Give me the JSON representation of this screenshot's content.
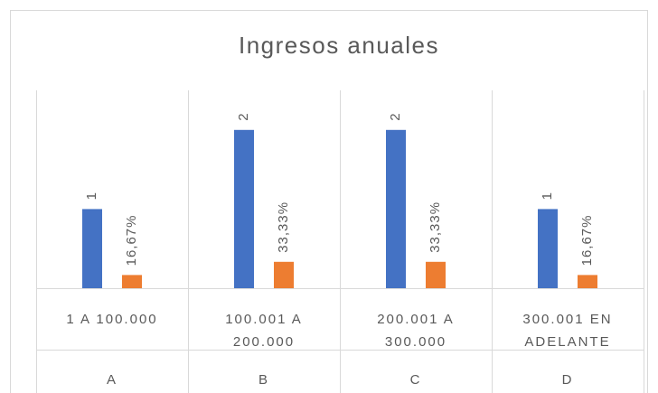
{
  "chart_data": {
    "type": "bar",
    "title": "Ingresos anuales",
    "categories": [
      "1 A 100.000",
      "100.001 A 200.000",
      "200.001 A 300.000",
      "300.001 EN ADELANTE"
    ],
    "groups": [
      "A",
      "B",
      "C",
      "D"
    ],
    "series": [
      {
        "color": "#4472c4",
        "values": [
          1,
          2,
          2,
          1
        ]
      },
      {
        "color": "#ed7d31",
        "axis": "y2",
        "values": [
          16.67,
          33.33,
          33.33,
          16.67
        ],
        "value_labels": [
          "16,67%",
          "33,33%",
          "33,33%",
          "16,67%"
        ]
      }
    ],
    "ylim": [
      0,
      2.5
    ],
    "y2lim": [
      0,
      250
    ]
  }
}
